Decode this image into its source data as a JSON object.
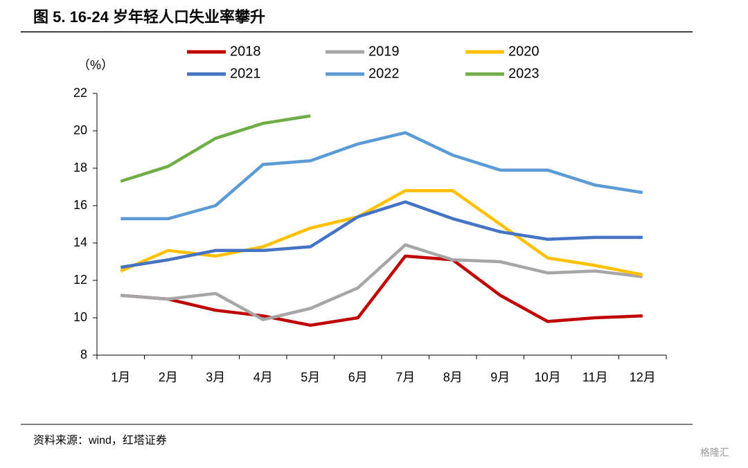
{
  "chart_data": {
    "type": "line",
    "title": "图 5. 16-24 岁年轻人口失业率攀升",
    "y_label": "（%）",
    "source": "资料来源：wind，红塔证券",
    "watermark": "格隆汇",
    "categories": [
      "1月",
      "2月",
      "3月",
      "4月",
      "5月",
      "6月",
      "7月",
      "8月",
      "9月",
      "10月",
      "11月",
      "12月"
    ],
    "series": [
      {
        "name": "2018",
        "color": "#c00000",
        "values": [
          11.2,
          11.0,
          10.4,
          10.1,
          9.6,
          10.0,
          13.3,
          13.1,
          11.2,
          9.8,
          10.0,
          10.1
        ]
      },
      {
        "name": "2019",
        "color": "#a6a6a6",
        "values": [
          11.2,
          11.0,
          11.3,
          9.9,
          10.5,
          11.6,
          13.9,
          13.1,
          13.0,
          12.4,
          12.5,
          12.2
        ]
      },
      {
        "name": "2020",
        "color": "#ffc000",
        "values": [
          12.5,
          13.6,
          13.3,
          13.8,
          14.8,
          15.4,
          16.8,
          16.8,
          15.0,
          13.2,
          12.8,
          12.3
        ]
      },
      {
        "name": "2021",
        "color": "#4472c4",
        "values": [
          12.7,
          13.1,
          13.6,
          13.6,
          13.8,
          15.4,
          16.2,
          15.3,
          14.6,
          14.2,
          14.3,
          14.3
        ]
      },
      {
        "name": "2022",
        "color": "#5b9bd5",
        "values": [
          15.3,
          15.3,
          16.0,
          18.2,
          18.4,
          19.3,
          19.9,
          18.7,
          17.9,
          17.9,
          17.1,
          16.7
        ]
      },
      {
        "name": "2023",
        "color": "#70ad47",
        "values": [
          17.3,
          18.1,
          19.6,
          20.4,
          20.8,
          null,
          null,
          null,
          null,
          null,
          null,
          null
        ]
      }
    ],
    "ylim": [
      8,
      22
    ],
    "yticks": [
      8,
      10,
      12,
      14,
      16,
      18,
      20,
      22
    ],
    "grid": false,
    "legend": "top"
  }
}
